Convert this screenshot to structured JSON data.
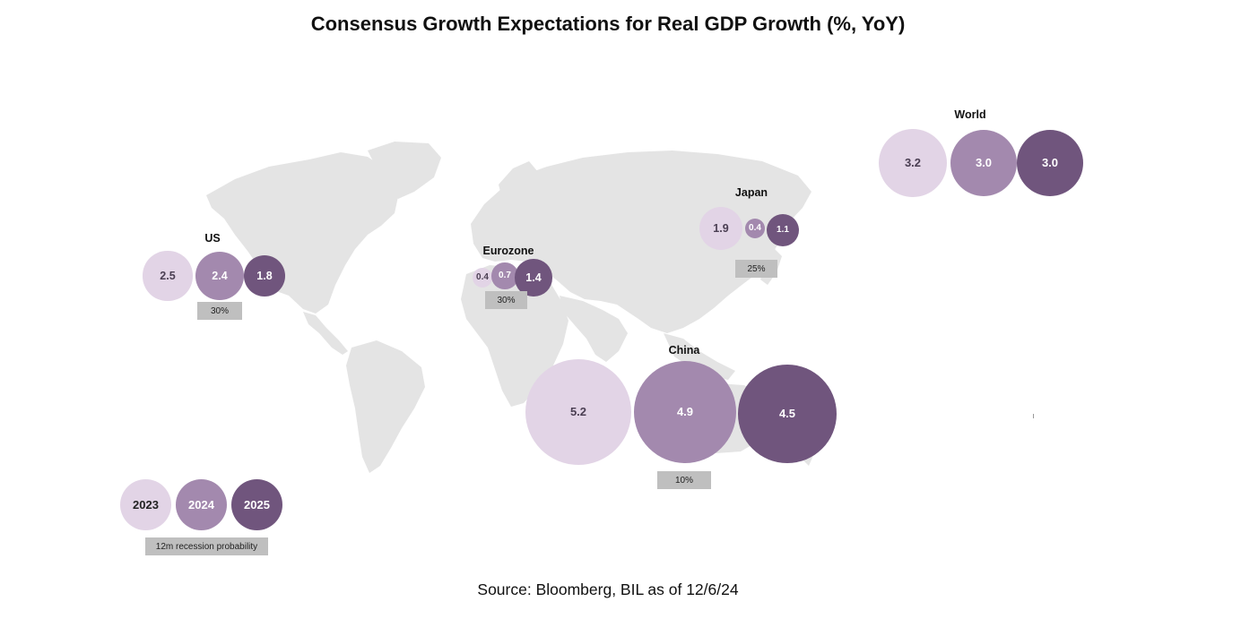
{
  "colors": {
    "y2023": "#e2d4e6",
    "y2024": "#a389ae",
    "y2025": "#70557d",
    "land": "#e4e4e4",
    "probability_box": "#bfbfbf"
  },
  "chart_data": {
    "type": "bubble-map",
    "title": "Consensus Growth Expectations for Real GDP Growth (%, YoY)",
    "years": [
      "2023",
      "2024",
      "2025"
    ],
    "regions": [
      {
        "name": "US",
        "values": [
          2.5,
          2.4,
          1.8
        ],
        "labels": [
          "2.5",
          "2.4",
          "1.8"
        ],
        "recession_probability": "30%"
      },
      {
        "name": "Eurozone",
        "values": [
          0.4,
          0.7,
          1.4
        ],
        "labels": [
          "0.4",
          "0.7",
          "1.4"
        ],
        "recession_probability": "30%"
      },
      {
        "name": "Japan",
        "values": [
          1.9,
          0.4,
          1.1
        ],
        "labels": [
          "1.9",
          "0.4",
          "1.1"
        ],
        "recession_probability": "25%"
      },
      {
        "name": "China",
        "values": [
          5.2,
          4.9,
          4.5
        ],
        "labels": [
          "5.2",
          "4.9",
          "4.5"
        ],
        "recession_probability": "10%"
      },
      {
        "name": "World",
        "values": [
          3.2,
          3.0,
          3.0
        ],
        "labels": [
          "3.2",
          "3.0",
          "3.0"
        ],
        "recession_probability": null
      }
    ],
    "legend": {
      "years": [
        "2023",
        "2024",
        "2025"
      ],
      "recession_label": "12m recession probability"
    },
    "source": "Source: Bloomberg, BIL as of 12/6/24"
  }
}
